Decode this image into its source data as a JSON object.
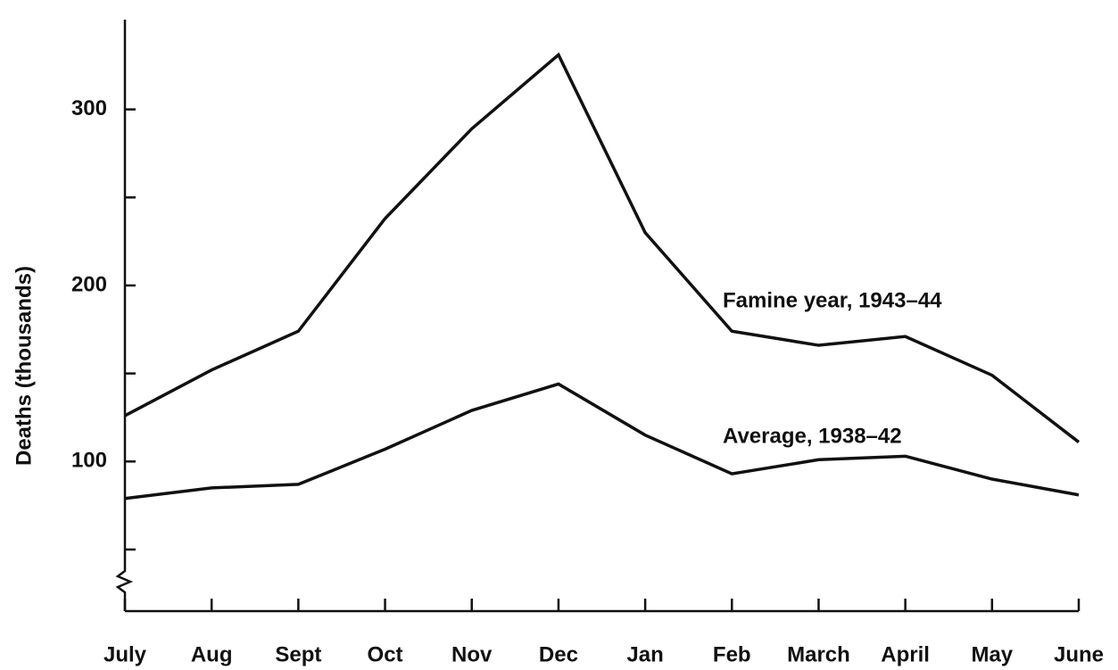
{
  "chart_data": {
    "type": "line",
    "ylabel": "Deaths (thousands)",
    "categories": [
      "July",
      "Aug",
      "Sept",
      "Oct",
      "Nov",
      "Dec",
      "Jan",
      "Feb",
      "March",
      "April",
      "May",
      "June"
    ],
    "series": [
      {
        "name": "Famine year, 1943–44",
        "color": "#111111",
        "values": [
          126,
          152,
          174,
          238,
          289,
          331,
          230,
          174,
          166,
          171,
          149,
          111
        ]
      },
      {
        "name": "Average, 1938–42",
        "color": "#111111",
        "values": [
          79,
          85,
          87,
          107,
          129,
          144,
          115,
          93,
          101,
          103,
          90,
          81
        ]
      }
    ],
    "ylim": [
      15,
      351
    ],
    "yticks": [
      100,
      200,
      300
    ],
    "minor_yticks": [
      50,
      150,
      250
    ],
    "grid": false
  }
}
